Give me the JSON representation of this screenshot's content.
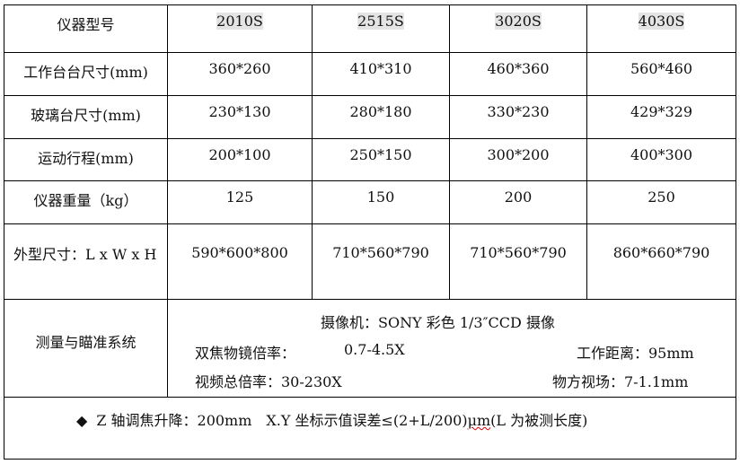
{
  "header": {
    "label": "仪器型号",
    "models": [
      "2010S",
      "2515S",
      "3020S",
      "4030S"
    ]
  },
  "rows": [
    {
      "label": "工作台台尺寸(mm)",
      "values": [
        "360*260",
        "410*310",
        "460*360",
        "560*460"
      ]
    },
    {
      "label": "玻璃台尺寸(mm)",
      "values": [
        "230*130",
        "280*180",
        "330*230",
        "429*329"
      ]
    },
    {
      "label": "运动行程(mm)",
      "values": [
        "200*100",
        "250*150",
        "300*200",
        "400*300"
      ]
    },
    {
      "label": "仪器重量（kg）",
      "values": [
        "125",
        "150",
        "200",
        "250"
      ]
    },
    {
      "label": "外型尺寸：L x W x H",
      "values": [
        "590*600*800",
        "710*560*790",
        "710*560*790",
        "860*660*790"
      ]
    }
  ],
  "measure": {
    "label": "测量与瞄准系统",
    "camera": "摄像机：SONY 彩色 1/3″CCD 摄像",
    "objective_label": "双焦物镜倍率：",
    "objective_value": "0.7-4.5X",
    "working_distance": "工作距离：95mm",
    "video_mag": "视频总倍率：30-230X",
    "field_of_view": "物方视场：7-1.1mm"
  },
  "footer": {
    "bullet": "◆",
    "text_a": "Z 轴调焦升降：200mm　X.Y 坐标示值误差≤(2+L/200)",
    "unit": "μm",
    "text_b": "(L 为被测长度)"
  }
}
